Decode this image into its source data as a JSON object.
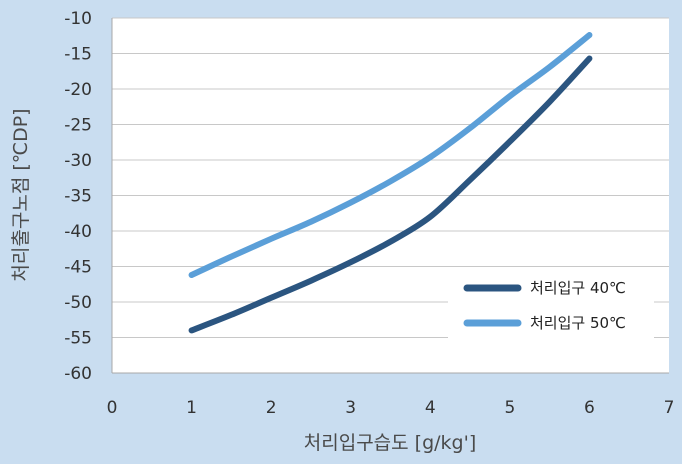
{
  "chart_data": {
    "type": "line",
    "xlabel": "처리입구습도 [g/kg']",
    "ylabel": "처리출구노점 [℃DP]",
    "xlim": [
      0,
      7
    ],
    "ylim": [
      -60,
      -10
    ],
    "x_ticks": [
      "0",
      "1",
      "2",
      "3",
      "4",
      "5",
      "6",
      "7"
    ],
    "y_ticks": [
      "-10",
      "-15",
      "-20",
      "-25",
      "-30",
      "-35",
      "-40",
      "-45",
      "-50",
      "-55",
      "-60"
    ],
    "grid": "horizontal",
    "legend_position": "bottom-right",
    "series": [
      {
        "name": "처리입구 40℃",
        "color": "#2b5580",
        "x": [
          1.0,
          1.5,
          2.0,
          2.5,
          3.0,
          3.5,
          4.0,
          4.5,
          5.0,
          5.5,
          6.0
        ],
        "y": [
          -54.0,
          -51.8,
          -49.4,
          -47.0,
          -44.4,
          -41.5,
          -38.0,
          -32.8,
          -27.4,
          -21.8,
          -15.7
        ]
      },
      {
        "name": "처리입구 50℃",
        "color": "#5b9fd8",
        "x": [
          1.0,
          1.5,
          2.0,
          2.5,
          3.0,
          3.5,
          4.0,
          4.5,
          5.0,
          5.5,
          6.0
        ],
        "y": [
          -46.2,
          -43.6,
          -41.1,
          -38.7,
          -36.0,
          -33.0,
          -29.6,
          -25.5,
          -21.0,
          -16.9,
          -12.4
        ]
      }
    ]
  }
}
